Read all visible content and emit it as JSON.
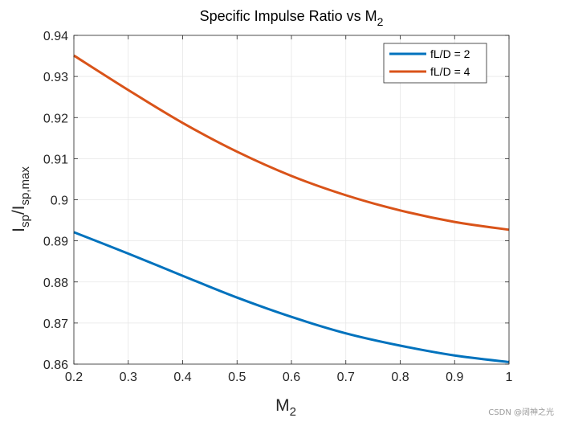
{
  "chart_data": {
    "type": "line",
    "title": "Specific Impulse Ratio vs M",
    "title_sub": "2",
    "xlabel": "M",
    "xlabel_sub": "2",
    "ylabel_main": "I",
    "ylabel_sub1": "sp",
    "ylabel_mid": "/I",
    "ylabel_sub2": "sp,max",
    "xlim": [
      0.2,
      1
    ],
    "ylim": [
      0.86,
      0.94
    ],
    "xticks": [
      0.2,
      0.3,
      0.4,
      0.5,
      0.6,
      0.7,
      0.8,
      0.9,
      1
    ],
    "xtick_labels": [
      "0.2",
      "0.3",
      "0.4",
      "0.5",
      "0.6",
      "0.7",
      "0.8",
      "0.9",
      "1"
    ],
    "yticks": [
      0.86,
      0.87,
      0.88,
      0.89,
      0.9,
      0.91,
      0.92,
      0.93,
      0.94
    ],
    "ytick_labels": [
      "0.86",
      "0.87",
      "0.88",
      "0.89",
      "0.9",
      "0.91",
      "0.92",
      "0.93",
      "0.94"
    ],
    "grid": true,
    "legend_position": "top-right",
    "x": [
      0.2,
      0.3,
      0.4,
      0.5,
      0.6,
      0.7,
      0.8,
      0.9,
      1.0
    ],
    "series": [
      {
        "name": "fL/D = 2",
        "color": "#0072BD",
        "values": [
          0.8921,
          0.8869,
          0.8815,
          0.8762,
          0.8715,
          0.8675,
          0.8645,
          0.8621,
          0.8605
        ]
      },
      {
        "name": "fL/D = 4",
        "color": "#D95319",
        "values": [
          0.9351,
          0.9267,
          0.9187,
          0.9117,
          0.9058,
          0.9011,
          0.8974,
          0.8946,
          0.8927
        ]
      }
    ]
  },
  "watermark": "CSDN @阔神之光"
}
